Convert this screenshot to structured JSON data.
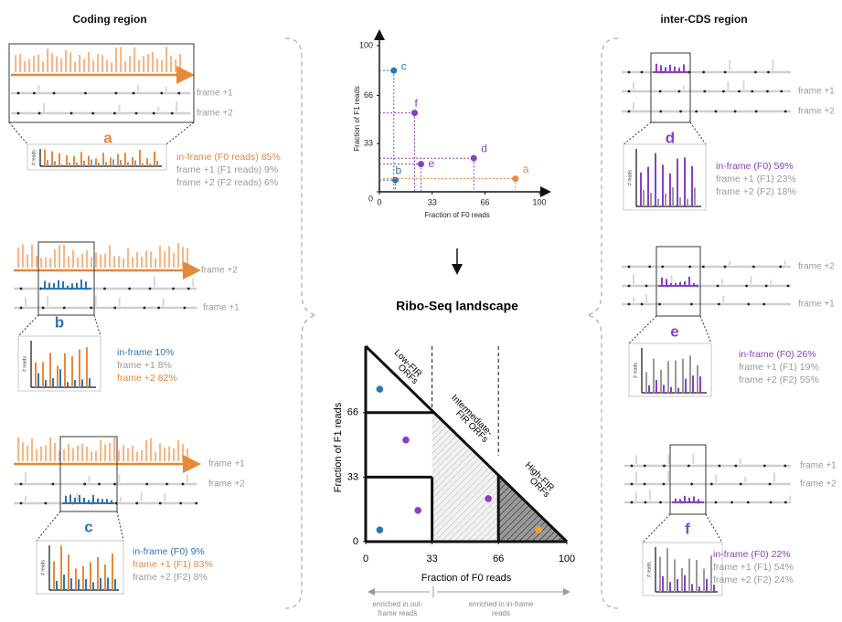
{
  "left_title": "Coding region",
  "right_title": "inter-CDS region",
  "inset_ylabel": "# reads",
  "panels": [
    {
      "letter": "a",
      "labels": [
        "frame +1",
        "frame +2"
      ],
      "stats": [
        "in-frame (F0 reads) 85%",
        "frame +1 (F1 reads) 9%",
        "frame +2 (F2 reads) 6%"
      ]
    },
    {
      "letter": "b",
      "labels": [
        "frame +2",
        "frame +1"
      ],
      "stats": [
        "in-frame 10%",
        "frame +1 8%",
        "frame +2 82%"
      ]
    },
    {
      "letter": "c",
      "labels": [
        "frame +1",
        "frame +2"
      ],
      "stats": [
        "in-frame (F0) 9%",
        "frame +1 (F1) 83%",
        "frame +2 (F2) 8%"
      ]
    },
    {
      "letter": "d",
      "labels": [
        "frame +1",
        "frame +2"
      ],
      "stats": [
        "in-frame (F0) 59%",
        "frame +1 (F1) 23%",
        "frame +2 (F2) 18%"
      ]
    },
    {
      "letter": "e",
      "labels": [
        "frame +2",
        "frame +1"
      ],
      "stats": [
        "in-frame (F0) 26%",
        "frame +1 (F1) 19%",
        "frame +2 (F2) 55%"
      ]
    },
    {
      "letter": "f",
      "labels": [
        "frame +1",
        "frame +2"
      ],
      "stats": [
        "in-frame (F0) 22%",
        "frame +1 (F1) 54%",
        "frame +2 (F2) 24%"
      ]
    }
  ],
  "scatter": {
    "xlabel": "Fraction of F0 reads",
    "ylabel": "Fraction of F1 reads",
    "xticks": [
      0,
      33,
      66,
      100
    ],
    "yticks": [
      0,
      33,
      66,
      100
    ],
    "points": [
      {
        "label": "c",
        "x": 9,
        "y": 83,
        "color": "#2e75b6"
      },
      {
        "label": "b",
        "x": 10,
        "y": 8,
        "color": "#2e75b6"
      },
      {
        "label": "f",
        "x": 22,
        "y": 54,
        "color": "#8a3fc4"
      },
      {
        "label": "e",
        "x": 26,
        "y": 19,
        "color": "#8a3fc4"
      },
      {
        "label": "d",
        "x": 59,
        "y": 23,
        "color": "#8a3fc4"
      },
      {
        "label": "a",
        "x": 85,
        "y": 9,
        "color": "#e8883a"
      }
    ]
  },
  "landscape": {
    "title": "Ribo-Seq landscape",
    "xlabel": "Fraction of F0 reads",
    "ylabel": "Fraction of F1 reads",
    "xticks": [
      0,
      33,
      66,
      100
    ],
    "yticks": [
      0,
      33,
      66
    ],
    "regions": [
      [
        "Low-FIR",
        "ORFs"
      ],
      [
        "Intermediate-",
        "FIR ORFs"
      ],
      [
        "High-FIR",
        "ORFs"
      ]
    ],
    "points": [
      {
        "x": 7,
        "y": 78,
        "color": "#2e75b6"
      },
      {
        "x": 20,
        "y": 52,
        "color": "#8a3fc4"
      },
      {
        "x": 7,
        "y": 6,
        "color": "#2e75b6"
      },
      {
        "x": 26,
        "y": 16,
        "color": "#8a3fc4"
      },
      {
        "x": 61,
        "y": 22,
        "color": "#8a3fc4"
      },
      {
        "x": 86,
        "y": 6,
        "color": "#f0a030"
      }
    ],
    "footer": [
      [
        "enriched in out-",
        "frame reads"
      ],
      [
        "enriched in in-frame",
        "reads"
      ]
    ]
  }
}
